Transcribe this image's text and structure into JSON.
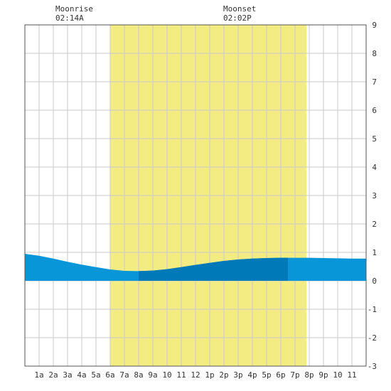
{
  "chart_data": {
    "type": "area",
    "title": "",
    "xlabel": "",
    "ylabel": "",
    "x_ticks": [
      "1a",
      "2a",
      "3a",
      "4a",
      "5a",
      "6a",
      "7a",
      "8a",
      "9a",
      "10",
      "11",
      "12",
      "1p",
      "2p",
      "3p",
      "4p",
      "5p",
      "6p",
      "7p",
      "8p",
      "9p",
      "10",
      "11"
    ],
    "ylim": [
      -3,
      9
    ],
    "xlim_hours": [
      0,
      24
    ],
    "y_ticks": [
      "-3",
      "-2",
      "-1",
      "0",
      "1",
      "2",
      "3",
      "4",
      "5",
      "6",
      "7",
      "8",
      "9"
    ],
    "grid": true,
    "daylight_hours": [
      6.0,
      19.8
    ],
    "moonrise": {
      "label": "Moonrise",
      "time": "02:14A"
    },
    "moonset": {
      "label": "Moonset",
      "time": "02:02P"
    },
    "highlight_hours": [
      8.0,
      18.5
    ],
    "series": [
      {
        "x": [
          0,
          1,
          2,
          3,
          4,
          5,
          6,
          7,
          8,
          9,
          10,
          11,
          12,
          13,
          14,
          15,
          16,
          17,
          18,
          19,
          20,
          21,
          22,
          23,
          24
        ],
        "values": [
          0.95,
          0.88,
          0.78,
          0.67,
          0.57,
          0.48,
          0.4,
          0.35,
          0.34,
          0.36,
          0.41,
          0.48,
          0.56,
          0.63,
          0.7,
          0.75,
          0.78,
          0.8,
          0.81,
          0.81,
          0.81,
          0.8,
          0.79,
          0.78,
          0.78
        ]
      }
    ],
    "colors": {
      "daylight": "#f3ec82",
      "tide": "#0896d8",
      "tide_highlight": "#0079b8",
      "grid": "#c8c8c8",
      "frame": "#555555"
    }
  }
}
